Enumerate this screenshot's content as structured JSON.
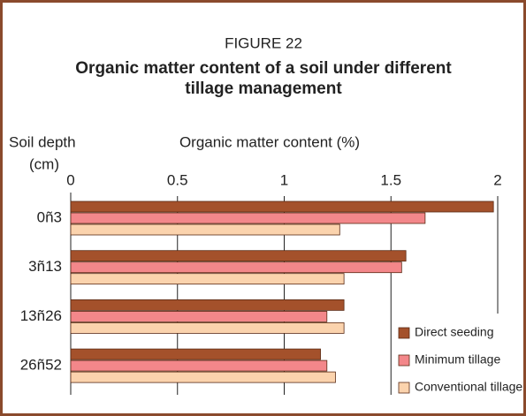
{
  "chart_data": {
    "type": "hbar",
    "figure_label": "FIGURE 22",
    "title": "Organic matter content of a soil under different tillage management",
    "y_label_line1": "Soil depth",
    "y_label_line2": "(cm)",
    "x_label": "Organic matter content (%)",
    "categories": [
      "0ñ3",
      "3ñ13",
      "13ñ26",
      "26ñ52"
    ],
    "series": [
      {
        "name": "Direct seeding",
        "color": "#a4512b",
        "values": [
          1.98,
          1.57,
          1.28,
          1.17
        ]
      },
      {
        "name": "Minimum tillage",
        "color": "#f3878a",
        "values": [
          1.66,
          1.55,
          1.2,
          1.2
        ]
      },
      {
        "name": "Conventional tillage",
        "color": "#fbd3ad",
        "values": [
          1.26,
          1.28,
          1.28,
          1.24
        ]
      }
    ],
    "xlim": [
      0,
      2
    ],
    "xticks": [
      0,
      0.5,
      1,
      1.5,
      2
    ],
    "grid": true,
    "legend": "lower-right"
  }
}
